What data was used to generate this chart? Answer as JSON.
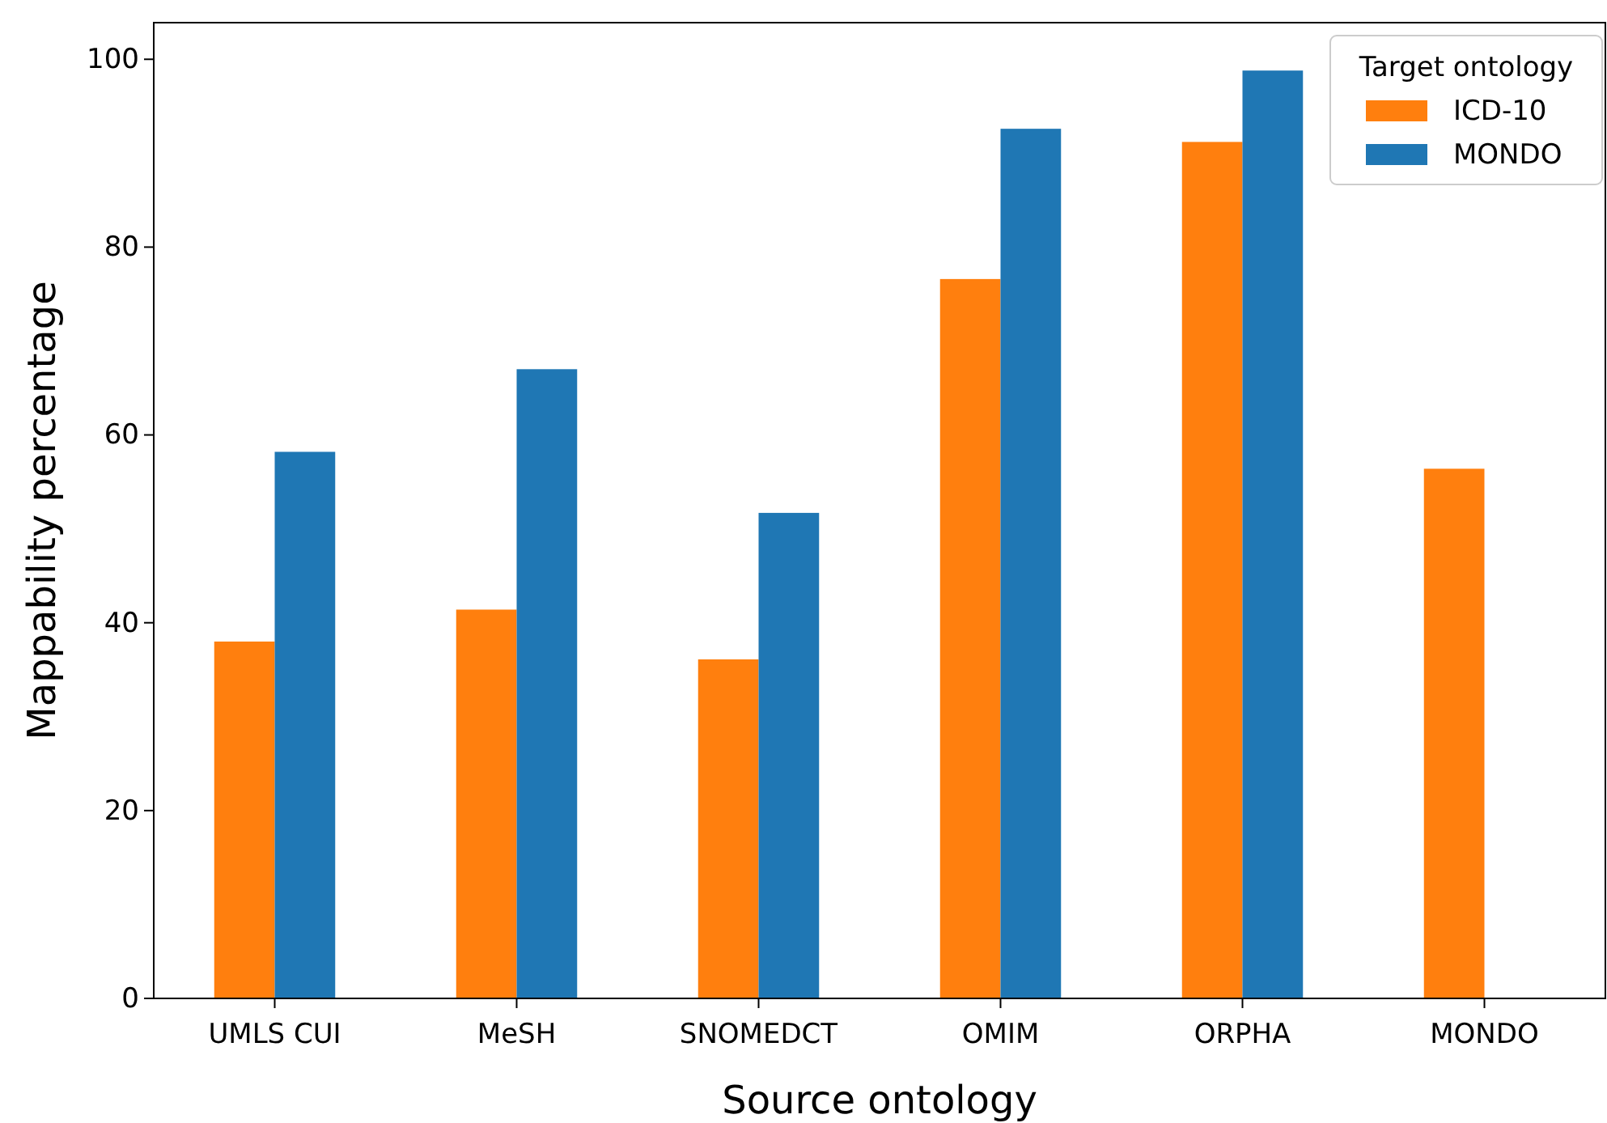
{
  "chart_data": {
    "type": "bar",
    "xlabel": "Source ontology",
    "ylabel": "Mappability percentage",
    "legend_title": "Target ontology",
    "categories": [
      "UMLS CUI",
      "MeSH",
      "SNOMEDCT",
      "OMIM",
      "ORPHA",
      "MONDO"
    ],
    "series": [
      {
        "name": "ICD-10",
        "color": "#ff7f0e",
        "values": [
          38.0,
          41.4,
          36.1,
          76.6,
          91.2,
          56.4
        ]
      },
      {
        "name": "MONDO",
        "color": "#1f77b4",
        "values": [
          58.2,
          67.0,
          51.7,
          92.6,
          98.8,
          null
        ]
      }
    ],
    "ylim": [
      0,
      103.9
    ],
    "yticks": [
      0,
      20,
      40,
      60,
      80,
      100
    ],
    "grid": false,
    "legend": "top right"
  }
}
